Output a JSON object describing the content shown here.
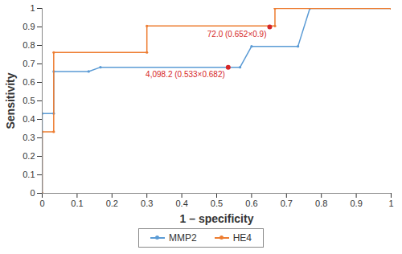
{
  "chart_data": {
    "type": "line",
    "xlabel": "1 – specificity",
    "ylabel": "Sensitivity",
    "xlim": [
      0,
      1
    ],
    "ylim": [
      0,
      1
    ],
    "xticks": [
      0,
      0.1,
      0.2,
      0.3,
      0.4,
      0.5,
      0.6,
      0.7,
      0.8,
      0.9,
      1
    ],
    "yticks": [
      0,
      0.1,
      0.2,
      0.3,
      0.4,
      0.5,
      0.6,
      0.7,
      0.8,
      0.9,
      1
    ],
    "grid": false,
    "legend": "bottom",
    "series": [
      {
        "name": "MMP2",
        "color": "#5b9bd5",
        "marker": "circle",
        "x": [
          0,
          0,
          0.033,
          0.033,
          0.133,
          0.167,
          0.567,
          0.6,
          0.733,
          0.767,
          1
        ],
        "values": [
          0,
          0.432,
          0.432,
          0.659,
          0.659,
          0.682,
          0.682,
          0.795,
          0.795,
          1,
          1
        ]
      },
      {
        "name": "HE4",
        "color": "#ed7d31",
        "marker": "circle",
        "x": [
          0,
          0,
          0.033,
          0.033,
          0.3,
          0.3,
          0.667,
          0.667,
          1
        ],
        "values": [
          0,
          0.333,
          0.333,
          0.762,
          0.762,
          0.905,
          0.905,
          1,
          1
        ]
      }
    ],
    "annotations": [
      {
        "text": "72.0 (0.652×0.9)",
        "x": 0.652,
        "y": 0.9,
        "color": "#d62728"
      },
      {
        "text": "4,098.2 (0.533×0.682)",
        "x": 0.533,
        "y": 0.682,
        "color": "#d62728"
      }
    ]
  }
}
